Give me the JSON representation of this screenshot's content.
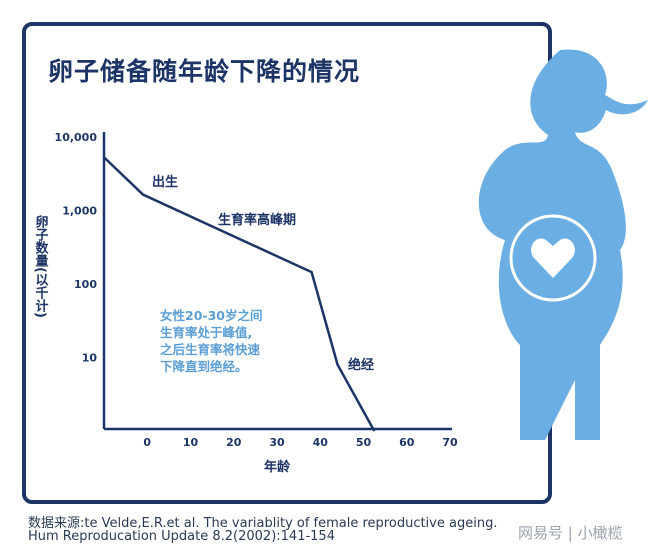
{
  "chart_data": {
    "type": "line",
    "title": "卵子储备随年龄下降的情况",
    "xlabel": "年龄",
    "ylabel": "卵子数量(以千计)",
    "x_ticks": [
      "0",
      "10",
      "20",
      "30",
      "40",
      "50",
      "60",
      "70"
    ],
    "y_ticks": [
      "10",
      "100",
      "1,000",
      "10,000"
    ],
    "y_scale": "log",
    "xlim": [
      -10,
      70
    ],
    "ylim": [
      1,
      10000
    ],
    "grid": false,
    "series": [
      {
        "x": [
          -10,
          -1,
          38,
          44,
          52.5
        ],
        "values": [
          5300,
          1650,
          145,
          8,
          1
        ]
      }
    ],
    "annotations": [
      "出生",
      "生育率高峰期",
      "绝经"
    ],
    "note": [
      "女性20-30岁之间",
      "生育率处于峰值,",
      "之后生育率将快速",
      "下降直到绝经。"
    ],
    "line_color": "#1d3566",
    "note_color": "#5b9fd6"
  },
  "source": [
    "数据来源:te Velde,E.R.et al. The variablity of female reproductive ageing.",
    "Hum Reproducation Update 8.2(2002):141-154"
  ],
  "watermark": "网易号 | 小橄榄",
  "figure_color": "#6aaee3"
}
